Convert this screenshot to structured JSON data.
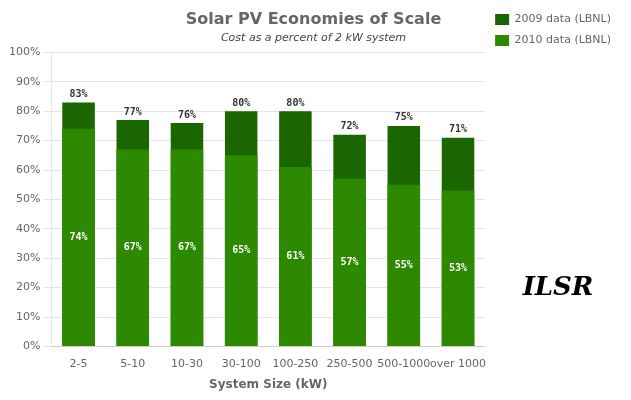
{
  "chart_data": {
    "type": "bar",
    "title": "Solar PV Economies of Scale",
    "subtitle": "Cost as a percent of 2 kW system",
    "xlabel": "System Size (kW)",
    "categories": [
      "2-5",
      "5-10",
      "10-30",
      "30-100",
      "100-250",
      "250-500",
      "500-1000",
      "over 1000"
    ],
    "series": [
      {
        "name": "2009 data (LBNL)",
        "color": "#1a6600",
        "values": [
          83,
          77,
          76,
          80,
          80,
          72,
          75,
          71
        ],
        "value_labels": [
          "83%",
          "77%",
          "76%",
          "80%",
          "80%",
          "72%",
          "75%",
          "71%"
        ]
      },
      {
        "name": "2010 data (LBNL)",
        "color": "#2d8a00",
        "values": [
          74,
          67,
          67,
          65,
          61,
          57,
          55,
          53
        ],
        "value_labels": [
          "74%",
          "67%",
          "67%",
          "65%",
          "61%",
          "57%",
          "55%",
          "53%"
        ]
      }
    ],
    "ylim": [
      0,
      100
    ],
    "yticks": [
      {
        "value": 0,
        "label": "0%"
      },
      {
        "value": 10,
        "label": "10%"
      },
      {
        "value": 20,
        "label": "20%"
      },
      {
        "value": 30,
        "label": "30%"
      },
      {
        "value": 40,
        "label": "40%"
      },
      {
        "value": 50,
        "label": "50%"
      },
      {
        "value": 60,
        "label": "60%"
      },
      {
        "value": 70,
        "label": "70%"
      },
      {
        "value": 80,
        "label": "80%"
      },
      {
        "value": 90,
        "label": "90%"
      },
      {
        "value": 100,
        "label": "100%"
      }
    ],
    "grid": true,
    "legend": "right",
    "data_labels": true,
    "annotations": [
      "ILSR"
    ]
  }
}
